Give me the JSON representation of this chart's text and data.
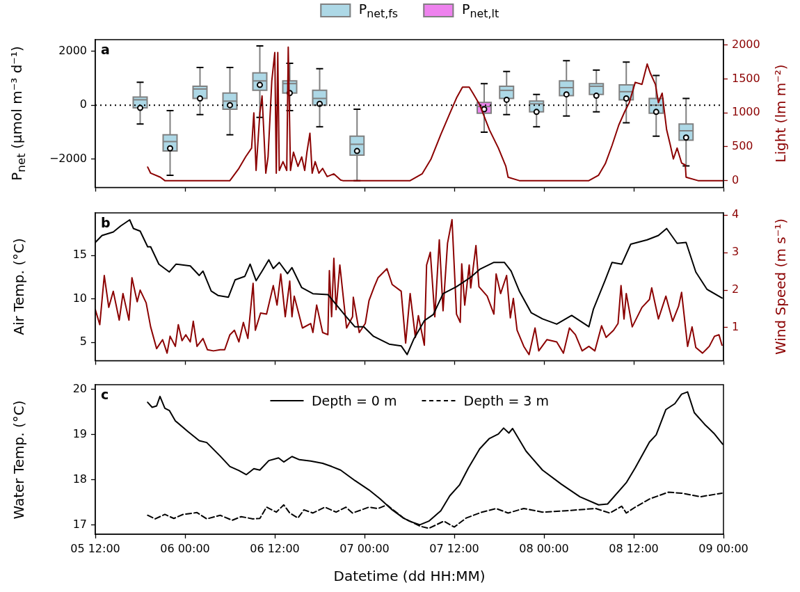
{
  "chart_data": [
    {
      "type": "box",
      "title": "a",
      "ylabel": "P$_{net}$ (µmol m⁻³ d⁻¹)",
      "y2label": "Light (lm m⁻²)",
      "xlim": [
        "--01-05T12:00",
        "--01-09T00:00"
      ],
      "xticks": [
        {
          "value": "--01-05T12:00",
          "label": null
        },
        {
          "value": "--01-06T00:00",
          "label": null
        },
        {
          "value": "--01-06T12:00",
          "label": null
        },
        {
          "value": "--01-07T00:00",
          "label": null
        },
        {
          "value": "--01-07T12:00",
          "label": null
        },
        {
          "value": "--01-08T00:00",
          "label": null
        },
        {
          "value": "--01-08T12:00",
          "label": null
        },
        {
          "value": "--01-09T00:00",
          "label": null
        }
      ],
      "ylim": [
        -3050,
        2430
      ],
      "yticks": [
        {
          "value": -2000,
          "label": "−2000"
        },
        0,
        2000
      ],
      "y2lim": [
        -100,
        2080
      ],
      "y2ticks": [
        0,
        500,
        1000,
        1500,
        2000
      ],
      "tick_labels": "y",
      "legend": "top",
      "ref_lines": [
        {
          "axis": "y",
          "value": 0,
          "line_style": "dotted",
          "color": "#000000"
        }
      ],
      "series": [
        {
          "name": "P$_{net,fs}$",
          "type": "box",
          "color": "#add8e6",
          "x": [
            "--01-05T18:00",
            "--01-05T22:00",
            "--01-06T02:00",
            "--01-06T06:00",
            "--01-06T10:00",
            "--01-06T14:00",
            "--01-06T18:00",
            "--01-06T23:00",
            "--01-07T19:00",
            "--01-07T23:00",
            "--01-08T03:00",
            "--01-08T07:00",
            "--01-08T11:00",
            "--01-08T15:00",
            "--01-08T19:00"
          ],
          "boxes": [
            {
              "low": -700,
              "q1": -100,
              "median": 200,
              "q3": 300,
              "high": 850,
              "mean": -100
            },
            {
              "low": -2600,
              "q1": -1700,
              "median": -1350,
              "q3": -1100,
              "high": -200,
              "mean": -1600
            },
            {
              "low": -350,
              "q1": 250,
              "median": 600,
              "q3": 700,
              "high": 1400,
              "mean": 250
            },
            {
              "low": -1100,
              "q1": -150,
              "median": 150,
              "q3": 450,
              "high": 1400,
              "mean": 0
            },
            {
              "low": -450,
              "q1": 550,
              "median": 900,
              "q3": 1200,
              "high": 2200,
              "mean": 750
            },
            {
              "low": -200,
              "q1": 450,
              "median": 800,
              "q3": 900,
              "high": 1550,
              "mean": 450
            },
            {
              "low": -800,
              "q1": 0,
              "median": 250,
              "q3": 550,
              "high": 1350,
              "mean": 50
            },
            {
              "low": -2800,
              "q1": -1850,
              "median": -1450,
              "q3": -1150,
              "high": -150,
              "mean": -1700
            },
            {
              "low": -350,
              "q1": 250,
              "median": 550,
              "q3": 700,
              "high": 1250,
              "mean": 200
            },
            {
              "low": -800,
              "q1": -250,
              "median": 50,
              "q3": 150,
              "high": 400,
              "mean": -250
            },
            {
              "low": -400,
              "q1": 350,
              "median": 650,
              "q3": 900,
              "high": 1650,
              "mean": 400
            },
            {
              "low": -250,
              "q1": 400,
              "median": 700,
              "q3": 800,
              "high": 1300,
              "mean": 350
            },
            {
              "low": -650,
              "q1": 200,
              "median": 500,
              "q3": 750,
              "high": 1600,
              "mean": 250
            },
            {
              "low": -1150,
              "q1": -300,
              "median": 0,
              "q3": 250,
              "high": 1100,
              "mean": -250
            },
            {
              "low": -2250,
              "q1": -1300,
              "median": -950,
              "q3": -700,
              "high": 250,
              "mean": -1200
            }
          ]
        },
        {
          "name": "P$_{net,lt}$",
          "type": "box",
          "color": "#ee82ee",
          "x": [
            "--01-07T16:00"
          ],
          "boxes": [
            {
              "low": -1000,
              "q1": -300,
              "median": -50,
              "q3": 100,
              "high": 800,
              "mean": -150
            }
          ]
        },
        {
          "type": "line",
          "axis": "y2",
          "color": "#8b0000",
          "x": [
            "--01-05T19:00",
            "--01-05T19:24",
            "--01-05T20:42",
            "--01-05T21:18",
            "--01-06T06:00",
            "--01-06T07:12",
            "--01-06T08:06",
            "--01-06T08:54",
            "--01-06T09:12",
            "--01-06T09:30",
            "--01-06T10:00",
            "--01-06T10:18",
            "--01-06T10:48",
            "--01-06T11:06",
            "--01-06T11:36",
            "--01-06T12:00",
            "--01-06T12:12",
            "--01-06T12:24",
            "--01-06T12:36",
            "--01-06T13:06",
            "--01-06T13:36",
            "--01-06T13:48",
            "--01-06T14:06",
            "--01-06T14:30",
            "--01-06T15:06",
            "--01-06T15:36",
            "--01-06T16:00",
            "--01-06T16:18",
            "--01-06T16:42",
            "--01-06T17:00",
            "--01-06T17:24",
            "--01-06T17:54",
            "--01-06T18:24",
            "--01-06T19:00",
            "--01-06T19:54",
            "--01-06T20:48",
            "--01-06T21:06",
            "--01-07T06:06",
            "--01-07T07:42",
            "--01-07T08:54",
            "--01-07T10:12",
            "--01-07T11:24",
            "--01-07T12:18",
            "--01-07T13:06",
            "--01-07T14:00",
            "--01-07T14:30",
            "--01-07T15:24",
            "--01-07T16:42",
            "--01-07T17:54",
            "--01-07T18:54",
            "--01-07T19:12",
            "--01-07T20:42",
            "--01-08T06:00",
            "--01-08T07:18",
            "--01-08T08:12",
            "--01-08T09:06",
            "--01-08T10:00",
            "--01-08T10:48",
            "--01-08T11:24",
            "--01-08T12:12",
            "--01-08T13:06",
            "--01-08T13:48",
            "--01-08T14:12",
            "--01-08T14:54",
            "--01-08T15:18",
            "--01-08T15:48",
            "--01-08T16:24",
            "--01-08T16:54",
            "--01-08T17:18",
            "--01-08T17:48",
            "--01-08T18:24",
            "--01-08T18:54",
            "--01-08T19:00",
            "--01-08T20:36",
            "--01-09T00:00"
          ],
          "values": [
            200,
            110,
            50,
            0,
            0,
            180,
            350,
            480,
            1000,
            150,
            990,
            1250,
            110,
            350,
            1470,
            1890,
            110,
            1890,
            150,
            280,
            150,
            1970,
            150,
            420,
            210,
            350,
            150,
            420,
            700,
            110,
            280,
            110,
            180,
            60,
            100,
            10,
            0,
            0,
            100,
            320,
            680,
            990,
            1220,
            1380,
            1380,
            1290,
            1120,
            750,
            480,
            210,
            50,
            0,
            0,
            80,
            250,
            520,
            820,
            1020,
            1150,
            1450,
            1420,
            1720,
            1590,
            1420,
            1150,
            1290,
            750,
            520,
            320,
            480,
            260,
            230,
            50,
            0,
            0
          ]
        }
      ]
    },
    {
      "type": "line",
      "title": "b",
      "ylabel": "Air Temp. (°C)",
      "y2label": "Wind Speed (m s⁻¹)",
      "xlim": [
        "--01-05T12:00",
        "--01-09T00:00"
      ],
      "xticks": [
        {
          "value": "--01-05T12:00",
          "label": null
        },
        {
          "value": "--01-06T00:00",
          "label": null
        },
        {
          "value": "--01-06T12:00",
          "label": null
        },
        {
          "value": "--01-07T00:00",
          "label": null
        },
        {
          "value": "--01-07T12:00",
          "label": null
        },
        {
          "value": "--01-08T00:00",
          "label": null
        },
        {
          "value": "--01-08T12:00",
          "label": null
        },
        {
          "value": "--01-09T00:00",
          "label": null
        }
      ],
      "ylim": [
        2.9,
        19.9
      ],
      "yticks": [
        5,
        10,
        15
      ],
      "y2lim": [
        0.12,
        4.06
      ],
      "y2ticks": [
        1,
        2,
        3,
        4
      ],
      "tick_labels": "y",
      "series": [
        {
          "color": "#000000",
          "x": [
            "--01-05T12:00",
            "--01-05T12:54",
            "--01-05T14:24",
            "--01-05T15:24",
            "--01-05T16:36",
            "--01-05T17:06",
            "--01-05T18:00",
            "--01-05T19:00",
            "--01-05T19:24",
            "--01-05T20:30",
            "--01-05T21:54",
            "--01-05T22:48",
            "--01-06T00:42",
            "--01-06T01:54",
            "--01-06T02:24",
            "--01-06T03:30",
            "--01-06T04:24",
            "--01-06T05:48",
            "--01-06T06:42",
            "--01-06T08:00",
            "--01-06T08:42",
            "--01-06T09:30",
            "--01-06T10:18",
            "--01-06T11:12",
            "--01-06T11:48",
            "--01-06T12:36",
            "--01-06T13:42",
            "--01-06T14:18",
            "--01-06T15:36",
            "--01-06T17:06",
            "--01-06T19:06",
            "--01-06T21:30",
            "--01-06T22:42",
            "--01-06T23:54",
            "--01-07T01:12",
            "--01-07T03:18",
            "--01-07T04:54",
            "--01-07T05:42",
            "--01-07T06:36",
            "--01-07T08:00",
            "--01-07T09:12",
            "--01-07T10:30",
            "--01-07T12:18",
            "--01-07T14:12",
            "--01-07T15:24",
            "--01-07T17:18",
            "--01-07T18:42",
            "--01-07T19:36",
            "--01-07T20:42",
            "--01-07T22:18",
            "--01-07T23:48",
            "--01-08T01:42",
            "--01-08T03:42",
            "--01-08T06:00",
            "--01-08T06:36",
            "--01-08T08:12",
            "--01-08T09:06",
            "--01-08T10:24",
            "--01-08T11:36",
            "--01-08T13:48",
            "--01-08T15:18",
            "--01-08T16:24",
            "--01-08T17:48",
            "--01-08T19:00",
            "--01-08T20:18",
            "--01-08T21:48",
            "--01-08T23:48"
          ],
          "values": [
            16.5,
            17.3,
            17.7,
            18.4,
            19.1,
            18.1,
            17.8,
            16,
            16,
            14,
            13.1,
            14,
            13.8,
            12.7,
            13.2,
            10.9,
            10.4,
            10.2,
            12.2,
            12.6,
            14,
            12.1,
            13.2,
            14.5,
            13.5,
            14.2,
            12.9,
            13.6,
            11.3,
            10.6,
            10.5,
            8,
            6.8,
            6.8,
            5.7,
            4.8,
            4.6,
            3.6,
            5.4,
            7.5,
            8.2,
            10.6,
            11.4,
            12.5,
            13.4,
            14.2,
            14.2,
            13.2,
            10.9,
            8.4,
            7.7,
            7.1,
            8.1,
            6.8,
            8.8,
            12.2,
            14.2,
            14,
            16.3,
            16.8,
            17.3,
            18.1,
            16.4,
            16.5,
            13.1,
            11.1,
            10.1
          ]
        },
        {
          "color": "#8b0000",
          "axis": "y2",
          "x": [
            "--01-05T12:00",
            "--01-05T12:36",
            "--01-05T13:12",
            "--01-05T13:48",
            "--01-05T14:24",
            "--01-05T15:12",
            "--01-05T15:42",
            "--01-05T16:30",
            "--01-05T16:54",
            "--01-05T17:36",
            "--01-05T18:00",
            "--01-05T18:48",
            "--01-05T19:24",
            "--01-05T20:12",
            "--01-05T21:00",
            "--01-05T21:36",
            "--01-05T22:00",
            "--01-05T22:42",
            "--01-05T23:06",
            "--01-05T23:36",
            "--01-06T00:06",
            "--01-06T00:42",
            "--01-06T01:06",
            "--01-06T01:36",
            "--01-06T02:24",
            "--01-06T03:00",
            "--01-06T03:48",
            "--01-06T04:42",
            "--01-06T05:18",
            "--01-06T06:00",
            "--01-06T06:36",
            "--01-06T07:12",
            "--01-06T07:48",
            "--01-06T08:24",
            "--01-06T09:06",
            "--01-06T09:24",
            "--01-06T10:06",
            "--01-06T10:54",
            "--01-06T11:48",
            "--01-06T12:18",
            "--01-06T12:48",
            "--01-06T13:24",
            "--01-06T14:00",
            "--01-06T14:18",
            "--01-06T14:36",
            "--01-06T15:42",
            "--01-06T16:48",
            "--01-06T17:06",
            "--01-06T17:36",
            "--01-06T18:24",
            "--01-06T19:06",
            "--01-06T19:18",
            "--01-06T19:36",
            "--01-06T19:54",
            "--01-06T20:12",
            "--01-06T20:42",
            "--01-06T21:36",
            "--01-06T22:24",
            "--01-06T22:30",
            "--01-06T23:18",
            "--01-07T00:06",
            "--01-07T00:36",
            "--01-07T01:18",
            "--01-07T01:48",
            "--01-07T03:00",
            "--01-07T03:42",
            "--01-07T04:54",
            "--01-07T05:30",
            "--01-07T06:06",
            "--01-07T06:48",
            "--01-07T07:12",
            "--01-07T08:00",
            "--01-07T08:18",
            "--01-07T08:48",
            "--01-07T09:24",
            "--01-07T10:00",
            "--01-07T10:30",
            "--01-07T11:06",
            "--01-07T11:42",
            "--01-07T12:18",
            "--01-07T12:48",
            "--01-07T13:00",
            "--01-07T13:24",
            "--01-07T14:00",
            "--01-07T14:12",
            "--01-07T14:54",
            "--01-07T15:18",
            "--01-07T16:24",
            "--01-07T17:18",
            "--01-07T17:36",
            "--01-07T18:12",
            "--01-07T19:00",
            "--01-07T19:30",
            "--01-07T19:54",
            "--01-07T20:24",
            "--01-07T21:18",
            "--01-07T22:00",
            "--01-07T22:48",
            "--01-07T23:18",
            "--01-08T00:24",
            "--01-08T01:42",
            "--01-08T02:36",
            "--01-08T03:24",
            "--01-08T04:12",
            "--01-08T05:06",
            "--01-08T06:00",
            "--01-08T06:48",
            "--01-08T07:42",
            "--01-08T08:18",
            "--01-08T09:18",
            "--01-08T09:54",
            "--01-08T10:18",
            "--01-08T10:42",
            "--01-08T11:00",
            "--01-08T11:48",
            "--01-08T13:06",
            "--01-08T14:06",
            "--01-08T14:24",
            "--01-08T15:18",
            "--01-08T16:18",
            "--01-08T17:12",
            "--01-08T18:00",
            "--01-08T18:24",
            "--01-08T19:12",
            "--01-08T19:48",
            "--01-08T20:18",
            "--01-08T21:12",
            "--01-08T22:06",
            "--01-08T22:48",
            "--01-08T23:24",
            "--01-08T23:48"
          ],
          "values": [
            1.48,
            1.08,
            2.39,
            1.54,
            1.97,
            1.2,
            1.91,
            1.2,
            2.33,
            1.69,
            2,
            1.66,
            1.02,
            0.44,
            0.68,
            0.32,
            0.77,
            0.5,
            1.08,
            0.65,
            0.81,
            0.62,
            1.17,
            0.5,
            0.71,
            0.41,
            0.38,
            0.41,
            0.41,
            0.81,
            0.93,
            0.62,
            1.14,
            0.71,
            2.18,
            0.93,
            1.39,
            1.36,
            2.12,
            1.6,
            2.43,
            1.29,
            2.24,
            1.29,
            1.84,
            0.99,
            1.11,
            0.87,
            1.6,
            0.87,
            0.81,
            2.52,
            1.29,
            2.85,
            1.48,
            2.67,
            0.99,
            1.29,
            1.81,
            0.87,
            1.11,
            1.72,
            2.09,
            2.33,
            2.57,
            2.15,
            1.97,
            0.59,
            1.91,
            0.74,
            1.32,
            0.53,
            2.67,
            3.01,
            1.29,
            3.34,
            1.45,
            3.25,
            3.88,
            1.36,
            1.14,
            2.7,
            1.6,
            2.67,
            2.06,
            3.19,
            2.09,
            1.84,
            1.36,
            2.43,
            1.91,
            2.39,
            1.26,
            1.78,
            0.93,
            0.5,
            0.28,
            0.99,
            0.38,
            0.68,
            0.62,
            0.32,
            0.99,
            0.81,
            0.38,
            0.5,
            0.38,
            1.05,
            0.74,
            0.93,
            1.11,
            2.12,
            1.23,
            1.91,
            1.02,
            1.54,
            1.75,
            2.06,
            1.23,
            1.84,
            1.17,
            1.57,
            1.94,
            0.5,
            1.02,
            0.47,
            0.32,
            0.5,
            0.77,
            0.81,
            0.53
          ]
        }
      ]
    },
    {
      "type": "line",
      "title": "c",
      "xlabel": "Datetime (dd HH:MM)",
      "ylabel": "Water Temp. (°C)",
      "xlim": [
        "--01-05T12:00",
        "--01-09T00:00"
      ],
      "xticks": [
        {
          "value": "--01-05T12:00",
          "label": "05 12:00"
        },
        {
          "value": "--01-06T00:00",
          "label": "06 00:00"
        },
        {
          "value": "--01-06T12:00",
          "label": "06 12:00"
        },
        {
          "value": "--01-07T00:00",
          "label": "07 00:00"
        },
        {
          "value": "--01-07T12:00",
          "label": "07 12:00"
        },
        {
          "value": "--01-08T00:00",
          "label": "08 00:00"
        },
        {
          "value": "--01-08T12:00",
          "label": "08 12:00"
        },
        {
          "value": "--01-09T00:00",
          "label": "09 00:00"
        }
      ],
      "ylim": [
        16.79,
        20.1
      ],
      "yticks": [
        17,
        18,
        19,
        20
      ],
      "legend": "top",
      "series": [
        {
          "name": "Depth = 0 m",
          "color": "#000000",
          "line_style": "solid",
          "x": [
            "--01-05T19:00",
            "--01-05T19:36",
            "--01-05T20:12",
            "--01-05T20:39",
            "--01-05T21:18",
            "--01-05T21:54",
            "--01-05T22:42",
            "--01-06T00:24",
            "--01-06T01:54",
            "--01-06T02:54",
            "--01-06T04:42",
            "--01-06T06:00",
            "--01-06T07:12",
            "--01-06T08:12",
            "--01-06T09:12",
            "--01-06T10:00",
            "--01-06T11:12",
            "--01-06T12:30",
            "--01-06T13:12",
            "--01-06T14:18",
            "--01-06T15:18",
            "--01-06T16:48",
            "--01-06T18:24",
            "--01-06T19:36",
            "--01-06T20:48",
            "--01-06T22:42",
            "--01-07T00:36",
            "--01-07T02:06",
            "--01-07T03:42",
            "--01-07T05:12",
            "--01-07T06:00",
            "--01-07T07:24",
            "--01-07T08:36",
            "--01-07T10:12",
            "--01-07T11:24",
            "--01-07T12:42",
            "--01-07T13:54",
            "--01-07T15:24",
            "--01-07T16:42",
            "--01-07T17:54",
            "--01-07T18:36",
            "--01-07T19:18",
            "--01-07T19:48",
            "--01-07T21:36",
            "--01-07T23:48",
            "--01-08T02:18",
            "--01-08T04:48",
            "--01-08T07:18",
            "--01-08T08:30",
            "--01-08T11:00",
            "--01-08T12:12",
            "--01-08T14:06",
            "--01-08T15:00",
            "--01-08T16:18",
            "--01-08T17:30",
            "--01-08T18:24",
            "--01-08T19:12",
            "--01-08T20:06",
            "--01-08T21:30",
            "--01-08T22:48",
            "--01-08T23:54"
          ],
          "values": [
            19.71,
            19.6,
            19.63,
            19.84,
            19.58,
            19.53,
            19.3,
            19.06,
            18.86,
            18.82,
            18.52,
            18.29,
            18.2,
            18.11,
            18.24,
            18.21,
            18.42,
            18.48,
            18.39,
            18.51,
            18.44,
            18.41,
            18.36,
            18.29,
            18.21,
            17.98,
            17.77,
            17.57,
            17.33,
            17.15,
            17.08,
            17,
            17.08,
            17.31,
            17.64,
            17.88,
            18.26,
            18.68,
            18.91,
            19.01,
            19.14,
            19.03,
            19.13,
            18.63,
            18.21,
            17.9,
            17.62,
            17.44,
            17.46,
            17.93,
            18.26,
            18.83,
            18.99,
            19.55,
            19.68,
            19.89,
            19.94,
            19.48,
            19.22,
            19.01,
            18.78
          ]
        },
        {
          "name": "Depth = 3 m",
          "color": "#000000",
          "line_style": "dashed",
          "x": [
            "--01-05T19:00",
            "--01-05T20:00",
            "--01-05T21:18",
            "--01-05T22:30",
            "--01-05T23:45",
            "--01-06T01:36",
            "--01-06T02:54",
            "--01-06T04:42",
            "--01-06T06:18",
            "--01-06T07:30",
            "--01-06T09:06",
            "--01-06T10:00",
            "--01-06T10:54",
            "--01-06T12:12",
            "--01-06T13:12",
            "--01-06T14:00",
            "--01-06T15:06",
            "--01-06T15:54",
            "--01-06T17:06",
            "--01-06T18:42",
            "--01-06T20:12",
            "--01-06T21:30",
            "--01-06T22:24",
            "--01-07T00:36",
            "--01-07T01:48",
            "--01-07T03:00",
            "--01-07T05:12",
            "--01-07T07:24",
            "--01-07T08:36",
            "--01-07T10:36",
            "--01-07T12:00",
            "--01-07T13:36",
            "--01-07T15:42",
            "--01-07T17:36",
            "--01-07T19:12",
            "--01-07T21:18",
            "--01-07T23:48",
            "--01-08T02:54",
            "--01-08T06:54",
            "--01-08T08:48",
            "--01-08T10:24",
            "--01-08T11:00",
            "--01-08T12:12",
            "--01-08T14:06",
            "--01-08T16:36",
            "--01-08T18:24",
            "--01-08T20:54",
            "--01-08T23:48"
          ],
          "values": [
            17.21,
            17.13,
            17.23,
            17.14,
            17.23,
            17.27,
            17.13,
            17.21,
            17.1,
            17.18,
            17.13,
            17.14,
            17.39,
            17.28,
            17.44,
            17.26,
            17.15,
            17.33,
            17.26,
            17.39,
            17.28,
            17.39,
            17.26,
            17.39,
            17.36,
            17.44,
            17.15,
            16.97,
            16.92,
            17.08,
            16.95,
            17.15,
            17.28,
            17.36,
            17.26,
            17.36,
            17.28,
            17.31,
            17.36,
            17.26,
            17.41,
            17.26,
            17.39,
            17.57,
            17.72,
            17.7,
            17.62,
            17.7
          ]
        }
      ]
    }
  ]
}
